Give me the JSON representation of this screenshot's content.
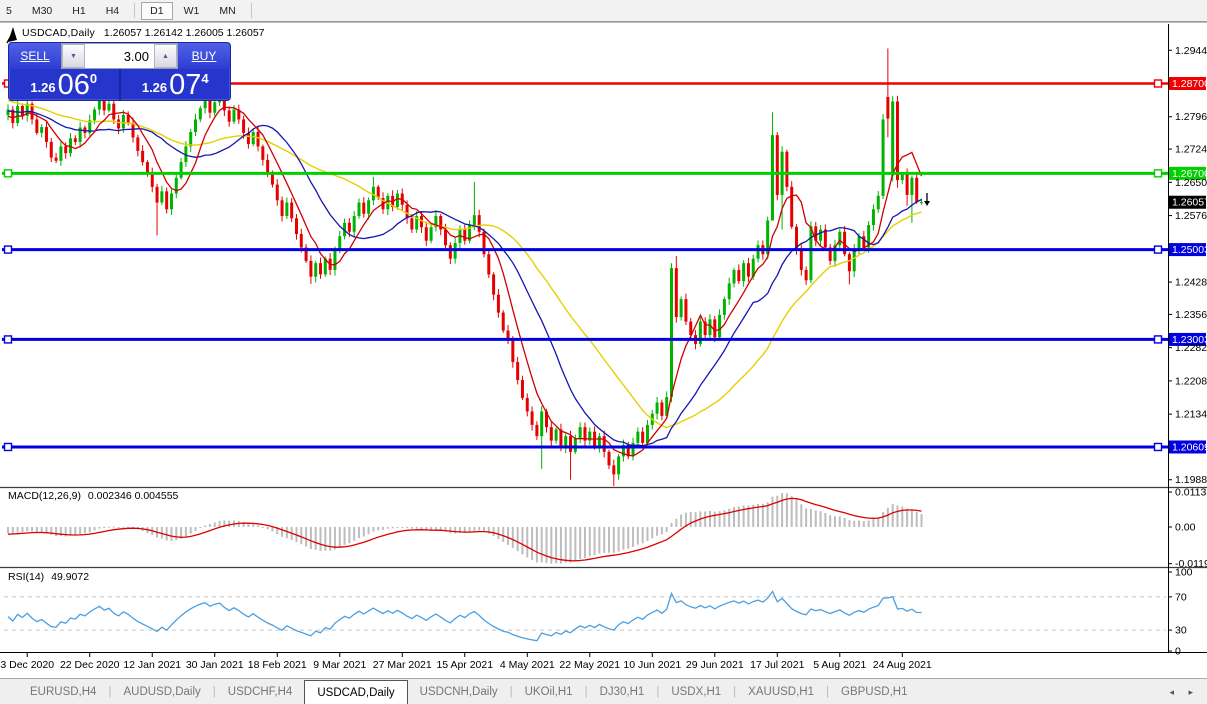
{
  "toolbar": {
    "timeframes": [
      "5",
      "M30",
      "H1",
      "H4",
      "D1",
      "W1",
      "MN"
    ],
    "active": "D1"
  },
  "chart": {
    "symbol_title": "USDCAD,Daily",
    "ohlc_text": "1.26057 1.26142 1.26005 1.26057",
    "trade_panel": {
      "sell_label": "SELL",
      "buy_label": "BUY",
      "volume": "3.00",
      "down_arrow": "▼",
      "up_arrow": "▲",
      "sell_price": {
        "frac": "1.26",
        "big": "06",
        "sup": "0"
      },
      "buy_price": {
        "frac": "1.26",
        "big": "07",
        "sup": "4"
      }
    },
    "colors": {
      "candle_up": "#00b300",
      "candle_down": "#e60000",
      "ma_fast_red": "#d00000",
      "ma_mid_blue": "#1515b0",
      "ma_slow_yellow": "#e6d000",
      "level_red": "#f00000",
      "level_green": "#00d000",
      "level_blue": "#0000e0",
      "macd_hist": "#bdbdbd",
      "macd_signal": "#dd0000",
      "rsi_line": "#4c9fe0",
      "rsi_dash": "#c8c8c8",
      "badge_current_bg": "#000000"
    },
    "price_axis_ticks": [
      {
        "label": "1.29440",
        "price": 1.2944,
        "type": "tick"
      },
      {
        "label": "1.28700",
        "price": 1.287,
        "type": "red"
      },
      {
        "label": "1.27960",
        "price": 1.2796,
        "type": "tick"
      },
      {
        "label": "1.27240",
        "price": 1.2724,
        "type": "tick"
      },
      {
        "label": "1.26700",
        "price": 1.267,
        "type": "green"
      },
      {
        "label": "1.26500",
        "price": 1.265,
        "type": "tick"
      },
      {
        "label": "1.26057",
        "price": 1.26057,
        "type": "current"
      },
      {
        "label": "1.25760",
        "price": 1.2576,
        "type": "tick"
      },
      {
        "label": "1.25003",
        "price": 1.25003,
        "type": "blue"
      },
      {
        "label": "1.24280",
        "price": 1.2428,
        "type": "tick"
      },
      {
        "label": "1.23560",
        "price": 1.2356,
        "type": "tick"
      },
      {
        "label": "1.23003",
        "price": 1.23003,
        "type": "blue"
      },
      {
        "label": "1.22820",
        "price": 1.2282,
        "type": "tick"
      },
      {
        "label": "1.22080",
        "price": 1.2208,
        "type": "tick"
      },
      {
        "label": "1.21340",
        "price": 1.2134,
        "type": "tick"
      },
      {
        "label": "1.20609",
        "price": 1.20609,
        "type": "blue"
      },
      {
        "label": "1.19880",
        "price": 1.1988,
        "type": "tick"
      }
    ],
    "levels": [
      {
        "price": 1.287,
        "type": "red"
      },
      {
        "price": 1.267,
        "type": "green"
      },
      {
        "price": 1.25003,
        "type": "blue"
      },
      {
        "price": 1.23003,
        "type": "blue"
      },
      {
        "price": 1.20609,
        "type": "blue"
      }
    ]
  },
  "indicators": {
    "macd": {
      "title": "MACD(12,26,9)",
      "values_text": "0.002346 0.004555",
      "fast": 12,
      "slow": 26,
      "signal": 9,
      "axis_labels": [
        {
          "label": "0.01135",
          "value": 0.01135
        },
        {
          "label": "0.00",
          "value": 0.0
        },
        {
          "label": "-0.01190",
          "value": -0.0119
        }
      ]
    },
    "rsi": {
      "title": "RSI(14)",
      "value_text": "49.9072",
      "period": 14,
      "dash_levels": [
        70,
        30
      ],
      "axis_labels": [
        {
          "label": "100",
          "value": 100
        },
        {
          "label": "70",
          "value": 70
        },
        {
          "label": "30",
          "value": 30
        },
        {
          "label": "0",
          "value": 0
        }
      ]
    }
  },
  "time_axis": {
    "ticks": [
      "3 Dec 2020",
      "22 Dec 2020",
      "12 Jan 2021",
      "30 Jan 2021",
      "18 Feb 2021",
      "9 Mar 2021",
      "27 Mar 2021",
      "15 Apr 2021",
      "4 May 2021",
      "22 May 2021",
      "10 Jun 2021",
      "29 Jun 2021",
      "17 Jul 2021",
      "5 Aug 2021",
      "24 Aug 2021"
    ],
    "first_tick_bar": 4,
    "bars_per_tick": 13
  },
  "tabs": {
    "items": [
      "EURUSD,H4",
      "AUDUSD,Daily",
      "USDCHF,H4",
      "USDCAD,Daily",
      "USDCNH,Daily",
      "UKOil,H1",
      "DJ30,H1",
      "USDX,H1",
      "XAUUSD,H1",
      "GBPUSD,H1"
    ],
    "active": "USDCAD,Daily",
    "scroll_arrows": "◂ ▸"
  },
  "chart_data": {
    "type": "candlestick",
    "symbol": "USDCAD",
    "period": "Daily",
    "last_ohlc": {
      "open": 1.26057,
      "high": 1.26142,
      "low": 1.26005,
      "close": 1.26057
    },
    "ma_periods": {
      "red": 7,
      "blue": 18,
      "yellow": 34
    },
    "history_closes": [
      1.3138,
      1.315,
      1.3112,
      1.309,
      1.3105,
      1.3075,
      1.306,
      1.3078,
      1.304,
      1.3015,
      1.3028,
      1.2995,
      1.2975,
      1.299,
      1.296,
      1.294,
      1.2955,
      1.2925,
      1.2905,
      1.2918,
      1.289,
      1.287,
      1.2885,
      1.2905,
      1.288,
      1.2858,
      1.2872,
      1.2895,
      1.2915,
      1.289,
      1.2868,
      1.285,
      1.2865,
      1.2885,
      1.286,
      1.284,
      1.2855,
      1.283,
      1.281,
      1.2825,
      1.2845,
      1.2862,
      1.284,
      1.2818,
      1.2832,
      1.2808,
      1.279,
      1.2805,
      1.2825,
      1.2845,
      1.282,
      1.2798,
      1.2812,
      1.283,
      1.281,
      1.279,
      1.2802,
      1.2778,
      1.279,
      1.28
    ],
    "closes": [
      1.2812,
      1.2782,
      1.282,
      1.2798,
      1.2825,
      1.279,
      1.276,
      1.2773,
      1.274,
      1.2705,
      1.2698,
      1.273,
      1.2715,
      1.2748,
      1.274,
      1.2772,
      1.276,
      1.2788,
      1.2812,
      1.2835,
      1.281,
      1.2825,
      1.279,
      1.277,
      1.28,
      1.2782,
      1.275,
      1.272,
      1.2695,
      1.267,
      1.264,
      1.2605,
      1.263,
      1.259,
      1.2625,
      1.266,
      1.2695,
      1.273,
      1.2762,
      1.279,
      1.2815,
      1.2832,
      1.2805,
      1.2828,
      1.284,
      1.281,
      1.2785,
      1.2812,
      1.279,
      1.276,
      1.2735,
      1.2762,
      1.273,
      1.27,
      1.267,
      1.2645,
      1.261,
      1.2575,
      1.2605,
      1.257,
      1.2535,
      1.2505,
      1.2475,
      1.244,
      1.247,
      1.2445,
      1.248,
      1.2455,
      1.25,
      1.253,
      1.256,
      1.254,
      1.2575,
      1.2605,
      1.258,
      1.261,
      1.264,
      1.2615,
      1.259,
      1.262,
      1.2595,
      1.2625,
      1.26,
      1.257,
      1.2545,
      1.2575,
      1.255,
      1.252,
      1.255,
      1.2575,
      1.2545,
      1.251,
      1.248,
      1.2515,
      1.2545,
      1.252,
      1.2555,
      1.2577,
      1.254,
      1.249,
      1.2445,
      1.24,
      1.236,
      1.232,
      1.23,
      1.225,
      1.221,
      1.217,
      1.214,
      1.211,
      1.2085,
      1.214,
      1.2105,
      1.2075,
      1.21,
      1.206,
      1.2085,
      1.205,
      1.208,
      1.2105,
      1.2075,
      1.2095,
      1.206,
      1.2085,
      1.205,
      1.202,
      1.2,
      1.204,
      1.2065,
      1.204,
      1.207,
      1.2095,
      1.207,
      1.211,
      1.2135,
      1.216,
      1.213,
      1.2172,
      1.2459,
      1.235,
      1.239,
      1.234,
      1.231,
      1.229,
      1.234,
      1.231,
      1.2345,
      1.2305,
      1.2355,
      1.239,
      1.2425,
      1.2455,
      1.243,
      1.247,
      1.244,
      1.248,
      1.251,
      1.249,
      1.2565,
      1.2755,
      1.2622,
      1.2718,
      1.264,
      1.2551,
      1.25,
      1.2455,
      1.2432,
      1.2552,
      1.252,
      1.2545,
      1.2505,
      1.2475,
      1.251,
      1.254,
      1.249,
      1.2452,
      1.25,
      1.253,
      1.2505,
      1.2555,
      1.259,
      1.262,
      1.279,
      1.2792,
      1.283,
      1.2655,
      1.2668,
      1.2622,
      1.266,
      1.2606,
      1.26057
    ],
    "overrides": {
      "31": {
        "l": 1.2532
      },
      "63": {
        "l": 1.2424
      },
      "76": {
        "h": 1.2662
      },
      "92": {
        "l": 1.2468
      },
      "97": {
        "h": 1.2651
      },
      "111": {
        "l": 1.2012
      },
      "117": {
        "l": 1.1988
      },
      "126": {
        "l": 1.1974
      },
      "138": {
        "h": 1.247
      },
      "139": {
        "h": 1.2486
      },
      "159": {
        "h": 1.2806,
        "l": 1.26
      },
      "160": {
        "l": 1.261
      },
      "161": {
        "l": 1.2545
      },
      "166": {
        "l": 1.2422
      },
      "175": {
        "l": 1.2423
      },
      "182": {
        "h": 1.2802
      },
      "183": {
        "o": 1.284,
        "h": 1.2948,
        "l": 1.275
      },
      "184": {
        "o": 1.2665,
        "h": 1.2842,
        "l": 1.2652
      },
      "185": {
        "l": 1.2638
      },
      "187": {
        "l": 1.2598
      },
      "188": {
        "l": 1.256
      },
      "190": {
        "o": 1.26057,
        "h": 1.26142,
        "l": 1.26005
      }
    }
  }
}
